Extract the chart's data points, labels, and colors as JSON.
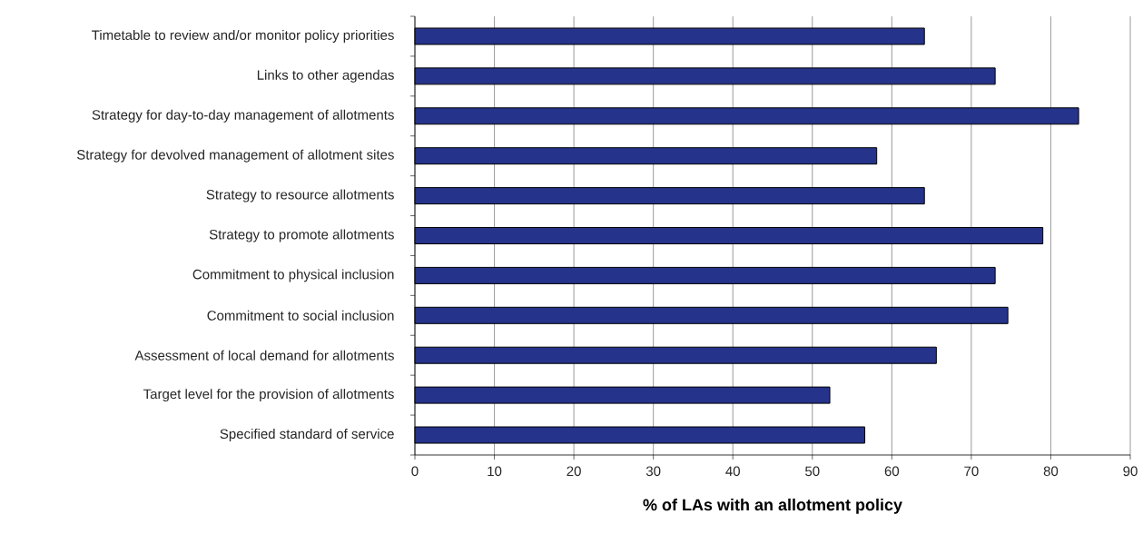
{
  "chart_data": {
    "type": "bar",
    "orientation": "horizontal",
    "xlabel": "% of LAs with an allotment policy",
    "categories": [
      "Timetable to review and/or monitor policy priorities",
      "Links to other agendas",
      "Strategy for day-to-day management of allotments",
      "Strategy for devolved management of allotment sites",
      "Strategy to resource allotments",
      "Strategy to promote allotments",
      "Commitment to physical inclusion",
      "Commitment to social inclusion",
      "Assessment of local demand for allotments",
      "Target level for the provision of allotments",
      "Specified standard of service"
    ],
    "values": [
      64.1,
      73.0,
      83.5,
      58.1,
      64.1,
      79.0,
      73.0,
      74.6,
      65.6,
      52.2,
      56.6
    ],
    "color": "#26338a",
    "xlim": [
      0,
      90
    ],
    "xticks": [
      0,
      10,
      20,
      30,
      40,
      50,
      60,
      70,
      80,
      90
    ],
    "grid": "x"
  }
}
